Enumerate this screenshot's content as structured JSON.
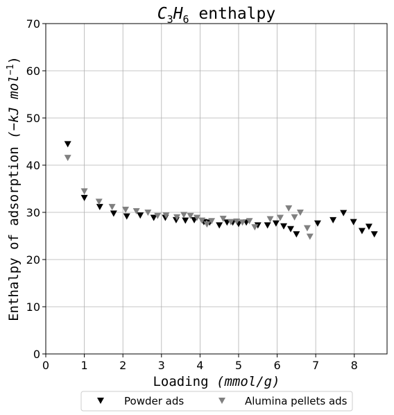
{
  "chart_data": {
    "type": "scatter",
    "title": "C3H6 enthalpy",
    "title_parts": {
      "a": "C",
      "sub1": "3",
      "b": "H",
      "sub2": "6",
      "rest": " enthalpy"
    },
    "xlabel_main": "Loading ",
    "xlabel_unit": "(mmol/g)",
    "ylabel_main": "Enthalpy of adsorption ",
    "ylabel_unit_open": "(−kJ mol",
    "ylabel_unit_sup": "−1",
    "ylabel_unit_close": ")",
    "xlim": [
      0,
      8.85
    ],
    "ylim": [
      0,
      70
    ],
    "xticks": [
      "0",
      "1",
      "2",
      "3",
      "4",
      "5",
      "6",
      "7",
      "8"
    ],
    "yticks": [
      "0",
      "10",
      "20",
      "30",
      "40",
      "50",
      "60",
      "70"
    ],
    "grid": true,
    "legend_position": "bottom-center",
    "series": [
      {
        "name": "Powder ads",
        "color": "#000000",
        "marker": "triangle-down",
        "x": [
          0.57,
          1.0,
          1.4,
          1.76,
          2.1,
          2.45,
          2.8,
          3.1,
          3.38,
          3.62,
          3.85,
          4.1,
          4.25,
          4.5,
          4.7,
          4.85,
          5.0,
          5.2,
          5.5,
          5.75,
          5.97,
          6.17,
          6.35,
          6.5,
          7.05,
          7.45,
          7.72,
          7.98,
          8.2,
          8.38,
          8.52
        ],
        "y": [
          44.5,
          33.1,
          31.2,
          29.8,
          29.2,
          29.4,
          28.9,
          28.9,
          28.4,
          28.3,
          28.4,
          28.0,
          27.9,
          27.3,
          27.9,
          27.9,
          27.6,
          27.9,
          27.3,
          27.3,
          27.7,
          27.1,
          26.5,
          25.4,
          27.7,
          28.4,
          29.9,
          28.0,
          26.1,
          27.0,
          25.4
        ]
      },
      {
        "name": "Alumina pellets ads",
        "color": "#808080",
        "marker": "triangle-down",
        "x": [
          0.57,
          1.0,
          1.38,
          1.72,
          2.07,
          2.35,
          2.65,
          2.9,
          3.12,
          3.4,
          3.58,
          3.75,
          3.92,
          4.05,
          4.18,
          4.3,
          4.6,
          4.8,
          4.95,
          5.1,
          5.28,
          5.42,
          5.82,
          6.08,
          6.3,
          6.45,
          6.6,
          6.78,
          6.85
        ],
        "y": [
          41.6,
          34.5,
          32.3,
          31.2,
          30.6,
          30.3,
          30.0,
          29.3,
          29.4,
          29.0,
          29.5,
          29.3,
          28.9,
          28.3,
          27.5,
          28.2,
          28.7,
          28.0,
          28.1,
          27.9,
          28.2,
          26.9,
          28.6,
          28.9,
          30.9,
          29.0,
          30.0,
          26.7,
          24.9
        ]
      }
    ]
  }
}
